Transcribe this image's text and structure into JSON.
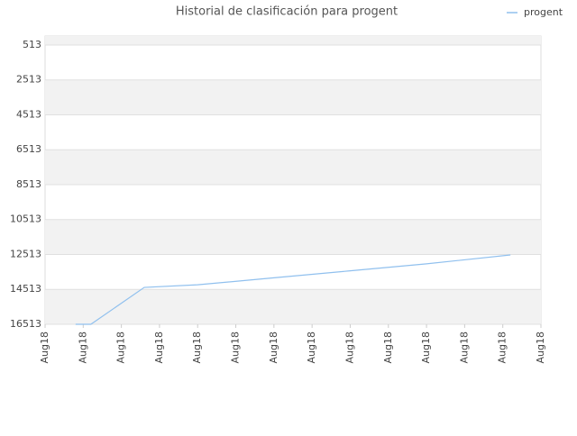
{
  "chart_data": {
    "type": "line",
    "title": "Historial de clasificación para progent",
    "x": [
      0.8,
      1.2,
      2.6,
      4,
      6,
      8,
      10,
      12.2
    ],
    "series": [
      {
        "name": "progent",
        "color": "#90c0ee",
        "values": [
          16513,
          16513,
          14400,
          14250,
          13850,
          13450,
          13050,
          12540
        ]
      }
    ],
    "xlim": [
      0,
      13
    ],
    "xticks": [
      {
        "value": 0,
        "label": "Aug18"
      },
      {
        "value": 1,
        "label": "Aug18"
      },
      {
        "value": 2,
        "label": "Aug18"
      },
      {
        "value": 3,
        "label": "Aug18"
      },
      {
        "value": 4,
        "label": "Aug18"
      },
      {
        "value": 5,
        "label": "Aug18"
      },
      {
        "value": 6,
        "label": "Aug18"
      },
      {
        "value": 7,
        "label": "Aug18"
      },
      {
        "value": 8,
        "label": "Aug18"
      },
      {
        "value": 9,
        "label": "Aug18"
      },
      {
        "value": 10,
        "label": "Aug18"
      },
      {
        "value": 11,
        "label": "Aug18"
      },
      {
        "value": 12,
        "label": "Aug18"
      },
      {
        "value": 13,
        "label": "Aug18"
      }
    ],
    "ylim": [
      16513,
      0
    ],
    "yticks": [
      513,
      2513,
      4513,
      6513,
      8513,
      10513,
      12513,
      14513,
      16513
    ],
    "grid": true,
    "legend": "top-right"
  }
}
